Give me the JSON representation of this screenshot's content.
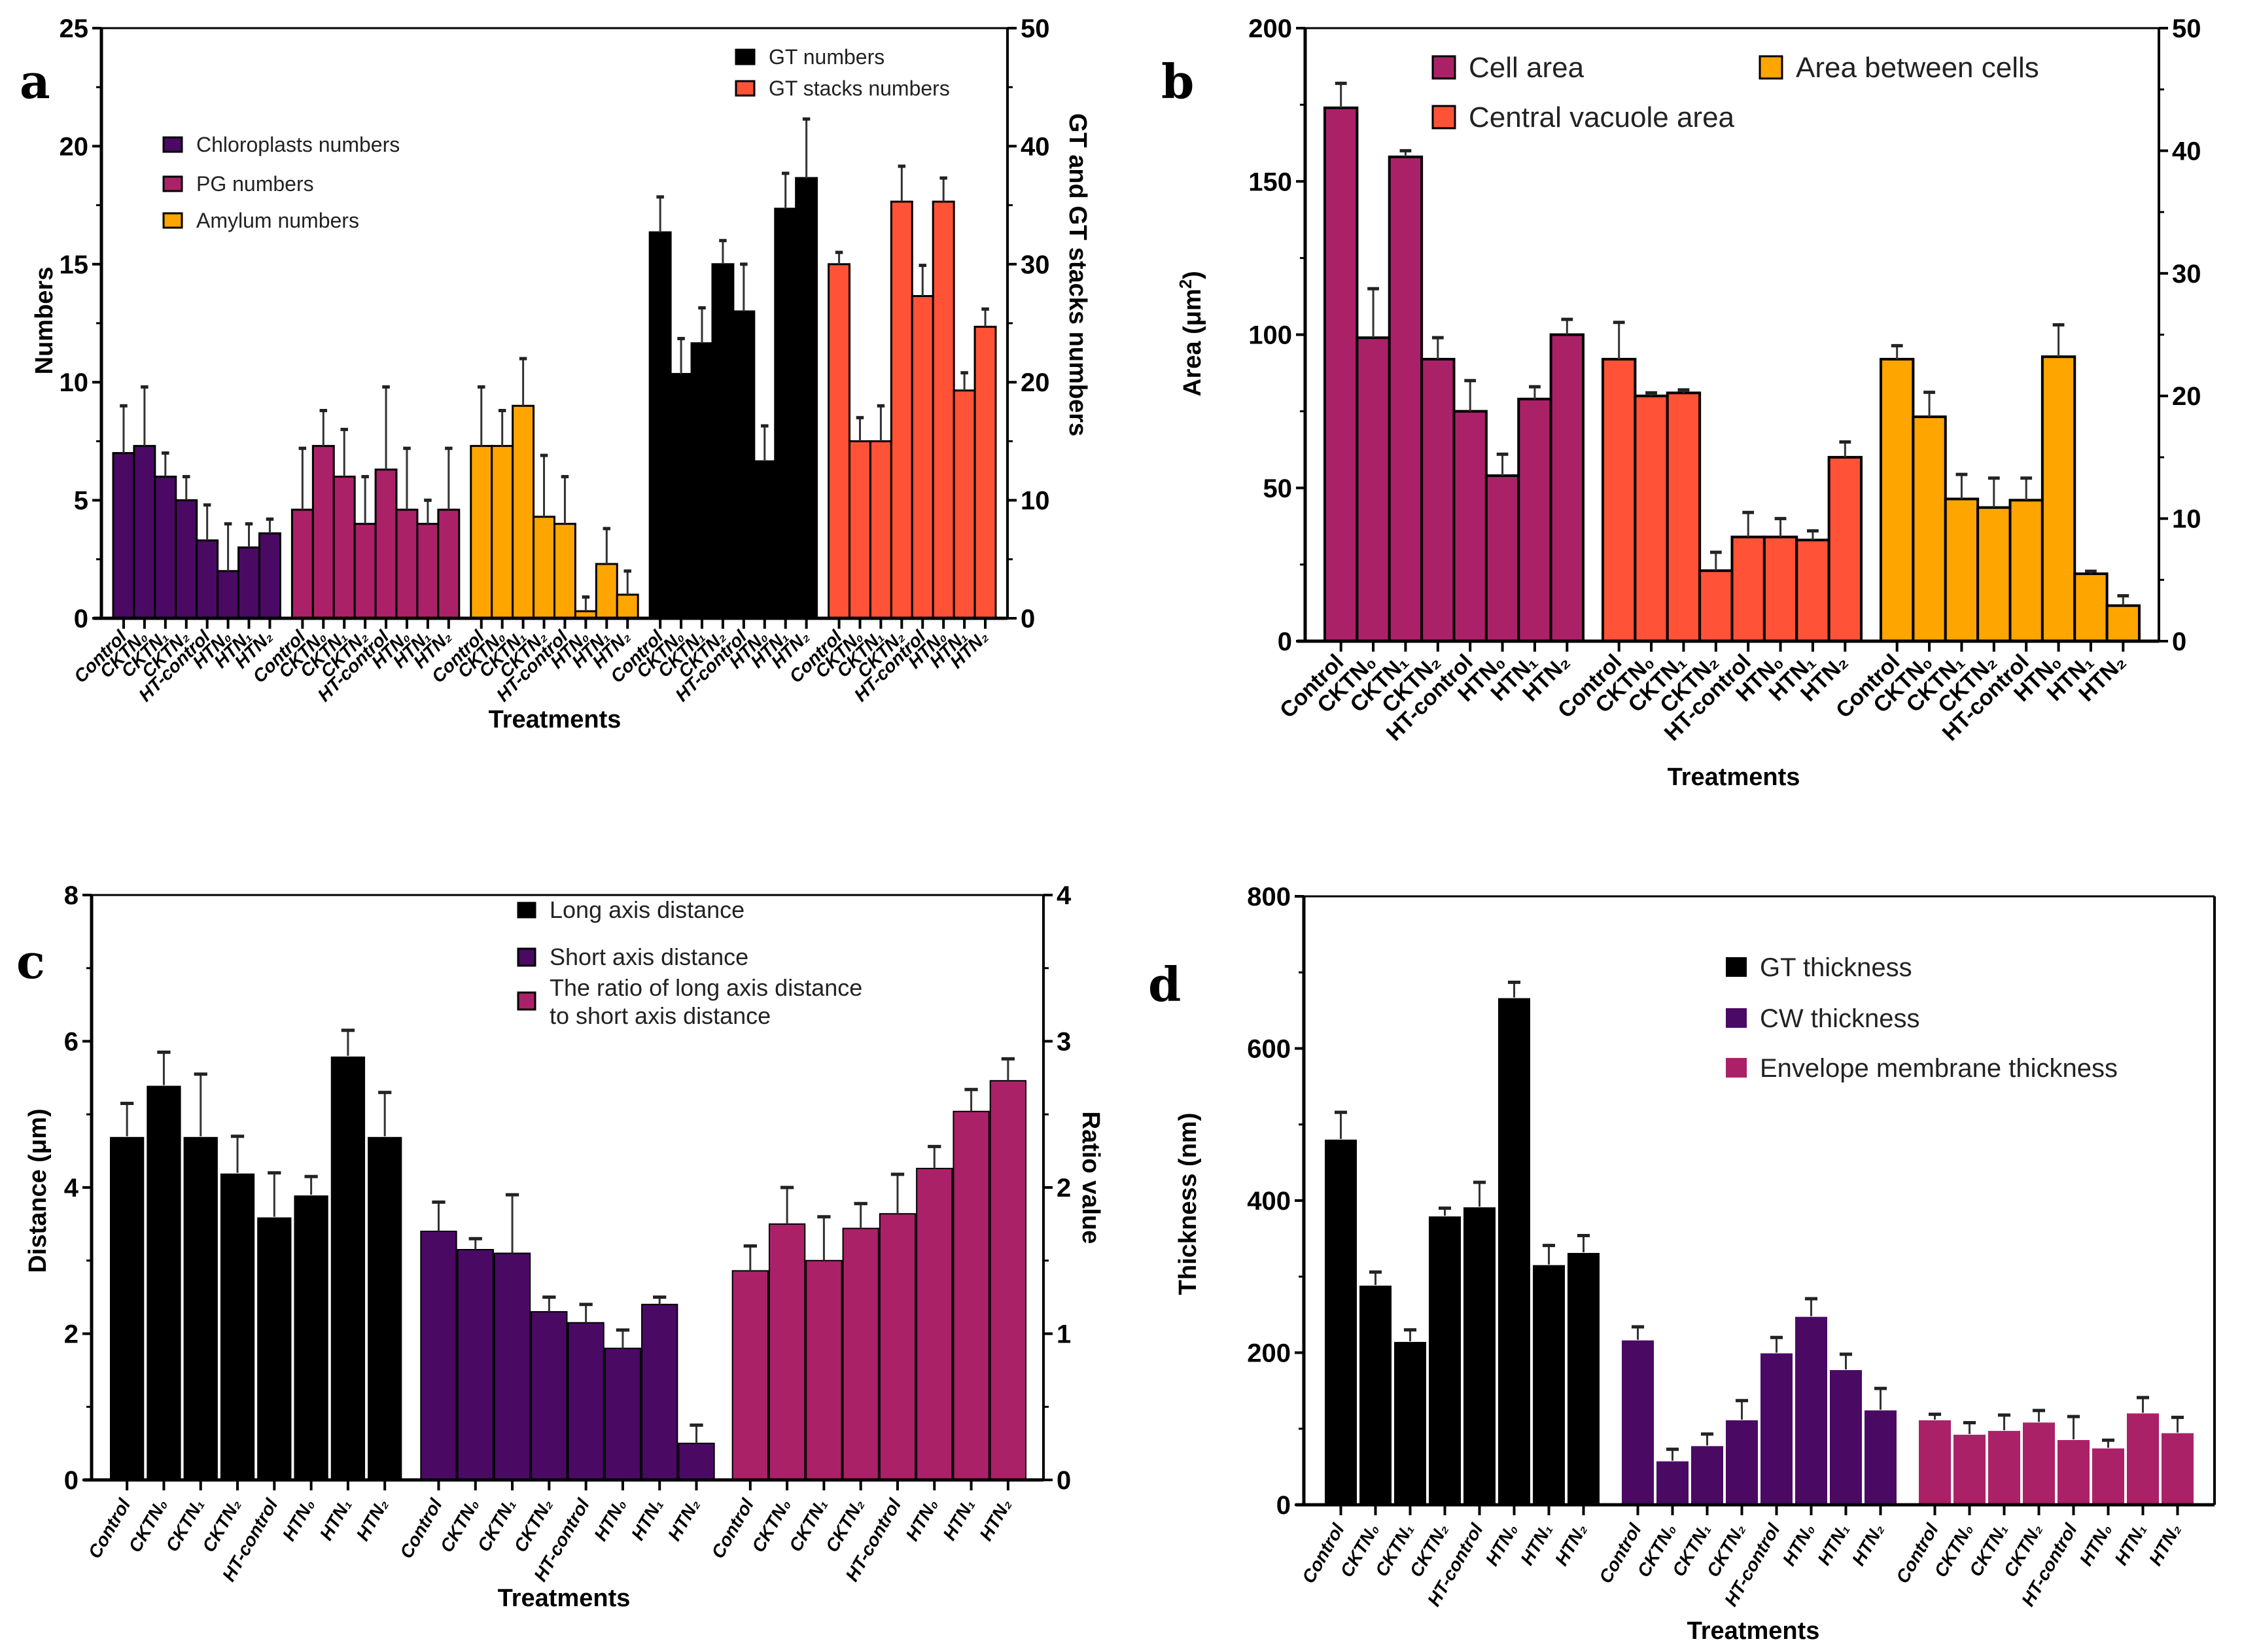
{
  "figure": {
    "panels": [
      "a",
      "b",
      "c",
      "d"
    ]
  },
  "chart_data": [
    {
      "id": "a",
      "type": "bar",
      "panel_letter": "a",
      "xlabel": "Treatments",
      "ylabel": "Numbers",
      "ylabel_right": "GT and GT stacks numbers",
      "ylim": [
        0,
        25
      ],
      "yticks": [
        0,
        5,
        10,
        15,
        20,
        25
      ],
      "ylim_right": [
        0,
        50
      ],
      "yticks_right": [
        0,
        10,
        20,
        30,
        40,
        50
      ],
      "categories": [
        "Control",
        "CKTN0",
        "CKTN1",
        "CKTN2",
        "HT-control",
        "HTN0",
        "HTN1",
        "HTN2"
      ],
      "category_display": [
        {
          "base": "Control",
          "sub": ""
        },
        {
          "base": "CKTN",
          "sub": "0"
        },
        {
          "base": "CKTN",
          "sub": "1"
        },
        {
          "base": "CKTN",
          "sub": "2"
        },
        {
          "base": "HT-control",
          "sub": ""
        },
        {
          "base": "HTN",
          "sub": "0"
        },
        {
          "base": "HTN",
          "sub": "1"
        },
        {
          "base": "HTN",
          "sub": "2"
        }
      ],
      "legend_left": [
        "Chloroplasts numbers",
        "PG numbers",
        "Amylum numbers"
      ],
      "legend_right": [
        "GT numbers",
        "GT stacks numbers"
      ],
      "series": [
        {
          "name": "Chloroplasts numbers",
          "axis": "left",
          "color": "#4a0a64",
          "values": [
            7.0,
            7.3,
            6.0,
            5.0,
            3.3,
            2.0,
            3.0,
            3.6
          ],
          "errors": [
            2.0,
            2.5,
            1.0,
            1.0,
            1.5,
            2.0,
            1.0,
            0.6
          ]
        },
        {
          "name": "PG numbers",
          "axis": "left",
          "color": "#ab2168",
          "values": [
            4.6,
            7.3,
            6.0,
            4.0,
            6.3,
            4.6,
            4.0,
            4.6
          ],
          "errors": [
            2.6,
            1.5,
            2.0,
            2.0,
            3.5,
            2.6,
            1.0,
            2.6
          ]
        },
        {
          "name": "Amylum numbers",
          "axis": "left",
          "color": "#ffa500",
          "values": [
            7.3,
            7.3,
            9.0,
            4.3,
            4.0,
            0.3,
            2.3,
            1.0
          ],
          "errors": [
            2.5,
            1.5,
            2.0,
            2.6,
            2.0,
            0.6,
            1.5,
            1.0
          ]
        },
        {
          "name": "GT numbers",
          "axis": "right",
          "color": "#000000",
          "values": [
            32.7,
            20.7,
            23.3,
            30.0,
            26.0,
            13.3,
            34.7,
            37.3
          ],
          "errors": [
            3.0,
            3.0,
            3.0,
            2.0,
            4.0,
            3.0,
            3.0,
            5.0
          ]
        },
        {
          "name": "GT stacks numbers",
          "axis": "right",
          "color": "#ff5236",
          "values": [
            30.0,
            15.0,
            15.0,
            35.3,
            27.3,
            35.3,
            19.3,
            24.7
          ],
          "errors": [
            1.0,
            2.0,
            3.0,
            3.0,
            2.6,
            2.0,
            1.5,
            1.5
          ]
        }
      ]
    },
    {
      "id": "b",
      "type": "bar",
      "panel_letter": "b",
      "xlabel": "Treatments",
      "ylabel": "Area (μm²)",
      "ylabel_base": "Area (μm",
      "ylabel_sup": "2",
      "ylabel_close": ")",
      "ylim": [
        0,
        200
      ],
      "yticks": [
        0,
        50,
        100,
        150,
        200
      ],
      "ylim_right": [
        0,
        50
      ],
      "yticks_right": [
        0,
        10,
        20,
        30,
        40,
        50
      ],
      "categories": [
        "Control",
        "CKTN0",
        "CKTN1",
        "CKTN2",
        "HT-control",
        "HTN0",
        "HTN1",
        "HTN2"
      ],
      "legend": [
        "Cell area",
        "Central vacuole area",
        "Area between cells"
      ],
      "series": [
        {
          "name": "Cell area",
          "axis": "left",
          "color": "#ab2168",
          "values": [
            174,
            99,
            158,
            92,
            75,
            54,
            79,
            100
          ],
          "errors": [
            8,
            16,
            2,
            7,
            10,
            7,
            4,
            5
          ]
        },
        {
          "name": "Central vacuole area",
          "axis": "left",
          "color": "#ff5236",
          "values": [
            92,
            80,
            81,
            23,
            34,
            34,
            33,
            60
          ],
          "errors": [
            12,
            1,
            1,
            6,
            8,
            6,
            3,
            5
          ]
        },
        {
          "name": "Area between cells",
          "axis": "right",
          "color": "#ffa500",
          "values": [
            23.0,
            18.3,
            11.6,
            10.9,
            11.5,
            23.2,
            5.5,
            2.9
          ],
          "errors": [
            1.1,
            2.0,
            2.0,
            2.4,
            1.8,
            2.6,
            0.2,
            0.8
          ]
        }
      ]
    },
    {
      "id": "c",
      "type": "bar",
      "panel_letter": "c",
      "xlabel": "Treatments",
      "ylabel": "Distance (μm)",
      "ylabel_right": "Ratio value",
      "ylim": [
        0,
        8
      ],
      "yticks": [
        0,
        2,
        4,
        6,
        8
      ],
      "ylim_right": [
        0,
        4
      ],
      "yticks_right": [
        0,
        1,
        2,
        3,
        4
      ],
      "categories": [
        "Control",
        "CKTN0",
        "CKTN1",
        "CKTN2",
        "HT-control",
        "HTN0",
        "HTN1",
        "HTN2"
      ],
      "legend": [
        "Long axis distance",
        "Short axis distance",
        "The ratio of long axis distance",
        "to short axis distance"
      ],
      "series": [
        {
          "name": "Long axis distance",
          "axis": "left",
          "color": "#000000",
          "values": [
            4.7,
            5.4,
            4.7,
            4.2,
            3.6,
            3.9,
            5.8,
            4.7
          ],
          "errors": [
            0.45,
            0.45,
            0.85,
            0.5,
            0.6,
            0.25,
            0.35,
            0.6
          ]
        },
        {
          "name": "Short axis distance",
          "axis": "left",
          "color": "#4a0a64",
          "values": [
            3.4,
            3.15,
            3.1,
            2.3,
            2.15,
            1.8,
            2.4,
            0.5
          ],
          "errors": [
            0.4,
            0.15,
            0.8,
            0.2,
            0.25,
            0.25,
            0.1,
            0.25
          ]
        },
        {
          "name": "The ratio of long axis distance to short axis distance",
          "axis": "right",
          "color": "#ab2168",
          "values": [
            1.43,
            1.75,
            1.5,
            1.72,
            1.82,
            2.13,
            2.52,
            2.73
          ],
          "errors": [
            0.17,
            0.25,
            0.3,
            0.17,
            0.27,
            0.15,
            0.15,
            0.15
          ]
        }
      ]
    },
    {
      "id": "d",
      "type": "bar",
      "panel_letter": "d",
      "xlabel": "Treatments",
      "ylabel": "Thickness (nm)",
      "ylim": [
        0,
        800
      ],
      "yticks": [
        0,
        200,
        400,
        600,
        800
      ],
      "categories": [
        "Control",
        "CKTN0",
        "CKTN1",
        "CKTN2",
        "HT-control",
        "HTN0",
        "HTN1",
        "HTN2"
      ],
      "legend": [
        "GT thickness",
        "CW thickness",
        "Envelope membrane thickness"
      ],
      "series": [
        {
          "name": "GT thickness",
          "axis": "left",
          "color": "#000000",
          "values": [
            481,
            289,
            215,
            380,
            392,
            667,
            316,
            332
          ],
          "errors": [
            35,
            17,
            15,
            10,
            32,
            20,
            25,
            22
          ]
        },
        {
          "name": "CW thickness",
          "axis": "left",
          "color": "#4a0a64",
          "values": [
            217,
            58,
            78,
            112,
            200,
            248,
            178,
            125
          ],
          "errors": [
            17,
            15,
            15,
            25,
            20,
            23,
            20,
            28
          ]
        },
        {
          "name": "Envelope membrane thickness",
          "axis": "left",
          "color": "#ab2168",
          "values": [
            112,
            93,
            98,
            109,
            86,
            75,
            121,
            95
          ],
          "errors": [
            7,
            15,
            20,
            15,
            30,
            10,
            20,
            20
          ]
        }
      ]
    }
  ]
}
